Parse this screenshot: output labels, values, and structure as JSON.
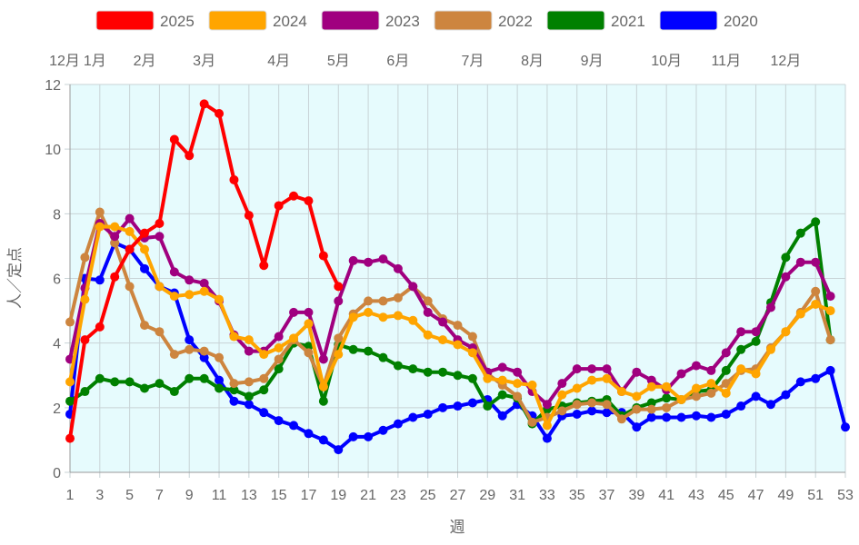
{
  "chart_data": {
    "type": "line",
    "xlabel": "週",
    "ylabel": "人／定点",
    "xlim": [
      1,
      53
    ],
    "ylim": [
      0,
      12
    ],
    "x_ticks": [
      1,
      3,
      5,
      7,
      9,
      11,
      13,
      15,
      17,
      19,
      21,
      23,
      25,
      27,
      29,
      31,
      33,
      35,
      37,
      39,
      41,
      43,
      45,
      47,
      49,
      51,
      53
    ],
    "y_ticks": [
      0,
      2,
      4,
      6,
      8,
      10,
      12
    ],
    "grid": true,
    "legend_position": "top",
    "plot_background": "#e6fbfd",
    "month_labels": [
      {
        "label": "12月",
        "week": 1.2
      },
      {
        "label": "1月",
        "week": 2.1
      },
      {
        "label": "2月",
        "week": 6
      },
      {
        "label": "3月",
        "week": 10
      },
      {
        "label": "4月",
        "week": 15
      },
      {
        "label": "5月",
        "week": 19
      },
      {
        "label": "6月",
        "week": 23
      },
      {
        "label": "7月",
        "week": 28
      },
      {
        "label": "8月",
        "week": 32
      },
      {
        "label": "9月",
        "week": 36
      },
      {
        "label": "10月",
        "week": 41
      },
      {
        "label": "11月",
        "week": 45
      },
      {
        "label": "12月",
        "week": 49
      }
    ],
    "series": [
      {
        "name": "2025",
        "color": "#ff0000",
        "start_week": 1,
        "values": [
          1.05,
          4.1,
          4.5,
          6.05,
          6.9,
          7.4,
          7.7,
          10.3,
          9.8,
          11.4,
          11.1,
          9.05,
          7.95,
          6.4,
          8.25,
          8.55,
          8.4,
          6.7,
          5.75
        ]
      },
      {
        "name": "2024",
        "color": "#ffa500",
        "start_week": 1,
        "values": [
          2.8,
          5.35,
          7.6,
          7.6,
          7.45,
          6.9,
          5.75,
          5.45,
          5.5,
          5.6,
          5.35,
          4.2,
          4.1,
          3.65,
          3.85,
          4.15,
          4.6,
          2.65,
          3.65,
          4.8,
          4.95,
          4.8,
          4.85,
          4.7,
          4.25,
          4.1,
          3.95,
          3.7,
          2.9,
          2.85,
          2.75,
          2.7,
          1.45,
          2.4,
          2.6,
          2.85,
          2.9,
          2.5,
          2.35,
          2.65,
          2.65,
          2.25,
          2.6,
          2.75,
          2.45,
          3.2,
          3.05,
          3.8,
          4.35,
          4.9,
          5.2,
          5.0
        ]
      },
      {
        "name": "2023",
        "color": "#a0007f",
        "start_week": 1,
        "values": [
          3.5,
          5.7,
          7.7,
          7.3,
          7.85,
          7.25,
          7.3,
          6.2,
          5.95,
          5.85,
          5.3,
          4.25,
          3.75,
          3.75,
          4.2,
          4.95,
          4.95,
          3.5,
          5.3,
          6.55,
          6.5,
          6.6,
          6.3,
          5.75,
          4.95,
          4.65,
          4.1,
          3.85,
          3.1,
          3.25,
          3.1,
          2.5,
          2.1,
          2.75,
          3.2,
          3.2,
          3.2,
          2.5,
          3.1,
          2.85,
          2.55,
          3.05,
          3.3,
          3.15,
          3.7,
          4.35,
          4.35,
          5.1,
          6.05,
          6.5,
          6.5,
          5.45
        ]
      },
      {
        "name": "2022",
        "color": "#cd853f",
        "start_week": 1,
        "values": [
          4.65,
          6.65,
          8.05,
          7.1,
          5.75,
          4.55,
          4.35,
          3.65,
          3.8,
          3.75,
          3.55,
          2.75,
          2.8,
          2.9,
          3.5,
          4.1,
          3.7,
          2.65,
          4.15,
          4.9,
          5.3,
          5.3,
          5.4,
          5.75,
          5.3,
          4.75,
          4.55,
          4.2,
          3.05,
          2.7,
          2.35,
          1.55,
          1.7,
          1.9,
          2.1,
          2.15,
          2.1,
          1.65,
          1.95,
          1.95,
          2.0,
          2.25,
          2.35,
          2.45,
          2.75,
          3.15,
          3.2,
          3.85,
          4.35,
          4.95,
          5.6,
          4.1
        ]
      },
      {
        "name": "2021",
        "color": "#008000",
        "start_week": 1,
        "values": [
          2.2,
          2.5,
          2.9,
          2.8,
          2.8,
          2.6,
          2.75,
          2.5,
          2.9,
          2.9,
          2.6,
          2.55,
          2.35,
          2.55,
          3.2,
          4.0,
          3.9,
          2.2,
          3.95,
          3.8,
          3.75,
          3.55,
          3.3,
          3.2,
          3.1,
          3.1,
          3.0,
          2.9,
          2.05,
          2.4,
          2.3,
          1.5,
          1.95,
          2.05,
          2.15,
          2.2,
          2.25,
          1.75,
          2.0,
          2.15,
          2.3,
          2.25,
          2.5,
          2.55,
          3.15,
          3.8,
          4.05,
          5.25,
          6.65,
          7.4,
          7.75,
          4.1
        ]
      },
      {
        "name": "2020",
        "color": "#0000ff",
        "start_week": 1,
        "values": [
          1.8,
          6.0,
          5.95,
          7.1,
          6.9,
          6.3,
          5.75,
          5.55,
          4.1,
          3.55,
          2.85,
          2.2,
          2.1,
          1.85,
          1.6,
          1.45,
          1.2,
          1.0,
          0.7,
          1.1,
          1.1,
          1.3,
          1.5,
          1.7,
          1.8,
          2.0,
          2.05,
          2.15,
          2.25,
          1.75,
          2.1,
          1.75,
          1.05,
          1.75,
          1.8,
          1.9,
          1.85,
          1.85,
          1.4,
          1.7,
          1.7,
          1.7,
          1.75,
          1.7,
          1.8,
          2.05,
          2.35,
          2.1,
          2.4,
          2.8,
          2.9,
          3.15,
          1.4
        ]
      }
    ]
  }
}
